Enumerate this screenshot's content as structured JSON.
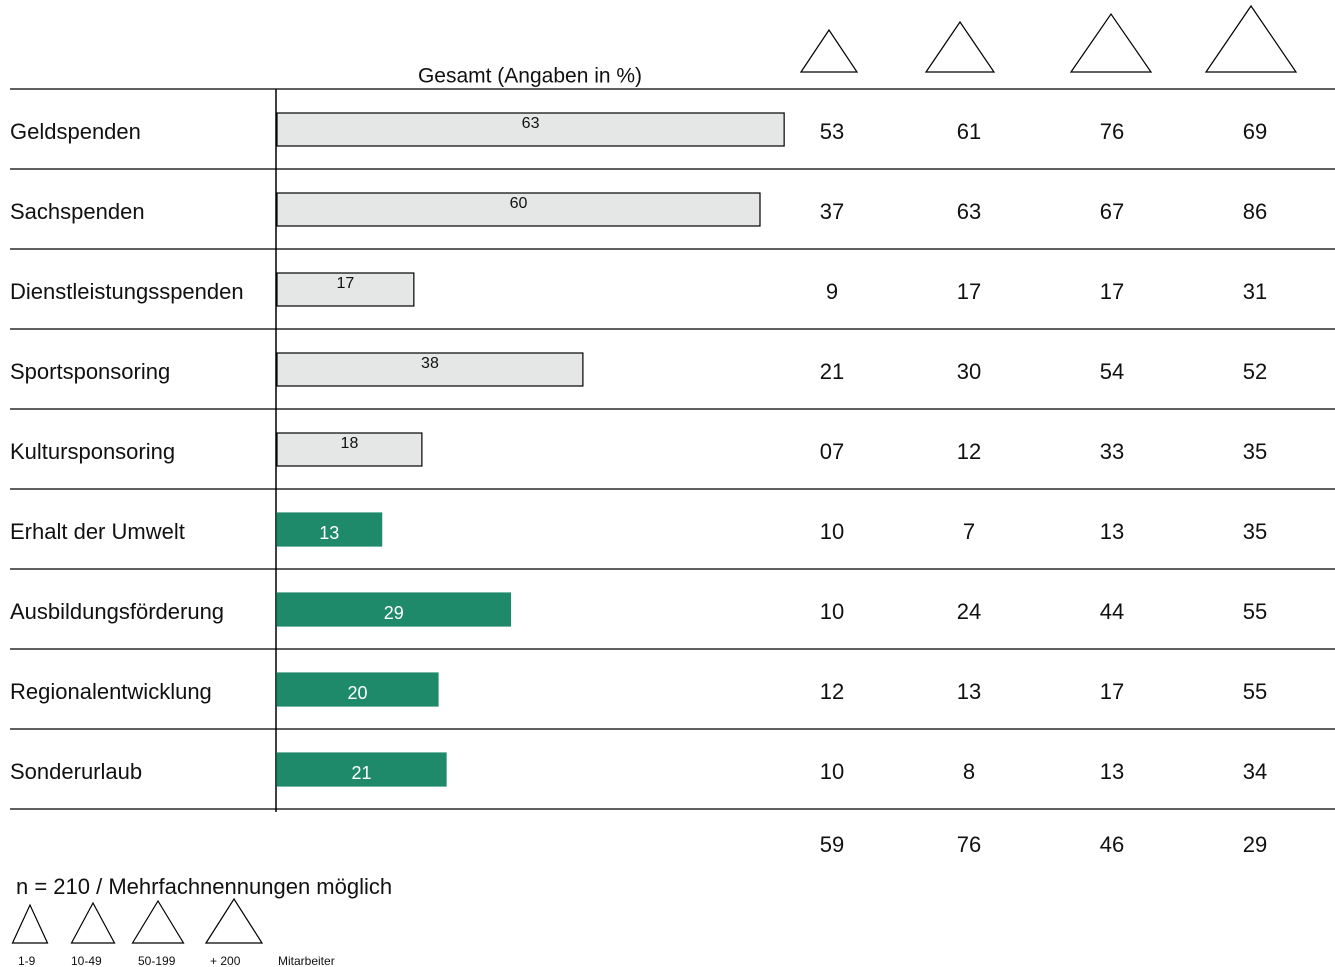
{
  "chart_data": {
    "type": "bar",
    "header": "Gesamt (Angaben in %)",
    "categories": [
      "Geldspenden",
      "Sachspenden",
      "Dienstleistungsspenden",
      "Sportsponsoring",
      "Kultursponsoring",
      "Erhalt der Umwelt",
      "Ausbildungsförderung",
      "Regionalentwicklung",
      "Sonderurlaub"
    ],
    "values": [
      63,
      60,
      17,
      38,
      18,
      13,
      29,
      20,
      21
    ],
    "colors": [
      "#e5e7e7",
      "#e5e7e7",
      "#e5e7e7",
      "#e5e7e7",
      "#e5e7e7",
      "#1f8a6a",
      "#1f8a6a",
      "#1f8a6a",
      "#1f8a6a"
    ],
    "series": [
      {
        "name": "1-9",
        "values": [
          "53",
          "37",
          "9",
          "21",
          "07",
          "10",
          "10",
          "12",
          "10"
        ],
        "total": "59"
      },
      {
        "name": "10-49",
        "values": [
          "61",
          "63",
          "17",
          "30",
          "12",
          "7",
          "24",
          "13",
          "8"
        ],
        "total": "76"
      },
      {
        "name": "50-199",
        "values": [
          "76",
          "67",
          "17",
          "54",
          "33",
          "13",
          "44",
          "17",
          "13"
        ],
        "total": "46"
      },
      {
        "name": "+ 200",
        "values": [
          "69",
          "86",
          "31",
          "52",
          "35",
          "35",
          "55",
          "55",
          "34"
        ],
        "total": "29"
      }
    ],
    "legend_unit": "Mitarbeiter",
    "note": "n = 210 / Mehrfachnennungen möglich"
  }
}
